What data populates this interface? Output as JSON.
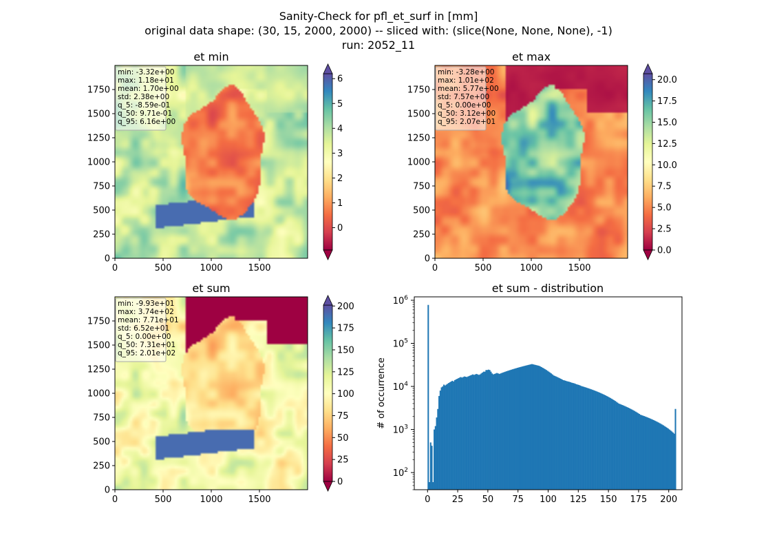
{
  "figure": {
    "title_lines": [
      "Sanity-Check for pfl_et_surf in [mm]",
      "original data shape: (30, 15, 2000, 2000) -- sliced with: (slice(None, None, None), -1)",
      "run: 2052_11"
    ]
  },
  "palette": {
    "spectral": [
      "#9e0142",
      "#d53e4f",
      "#f46d43",
      "#fdae61",
      "#fee08b",
      "#ffffbf",
      "#e6f598",
      "#abdda4",
      "#66c2a5",
      "#3288bd",
      "#5e4fa2"
    ],
    "hist_bar": "#1f77b4"
  },
  "maps": [
    {
      "id": "et-min",
      "title": "et min",
      "vmin": -0.9,
      "vmax": 6.2,
      "colorbar_ticks": [
        0,
        1,
        2,
        3,
        4,
        5,
        6
      ],
      "colorbar_tick_labels": [
        "0",
        "1",
        "2",
        "3",
        "4",
        "5",
        "6"
      ],
      "x_ticks": [
        0,
        500,
        1000,
        1500
      ],
      "y_ticks": [
        0,
        250,
        500,
        750,
        1000,
        1250,
        1500,
        1750
      ],
      "extent": [
        0,
        2000
      ],
      "stats": [
        "min: -3.32e+00",
        "max: 1.18e+01",
        "mean: 1.70e+00",
        "std: 2.38e+00",
        "q_5: -8.59e-01",
        "q_50: 9.71e-01",
        "q_95: 6.16e+00"
      ]
    },
    {
      "id": "et-max",
      "title": "et max",
      "vmin": 0,
      "vmax": 20.7,
      "colorbar_ticks": [
        0,
        2.5,
        5,
        7.5,
        10,
        12.5,
        15,
        17.5,
        20
      ],
      "colorbar_tick_labels": [
        "0.0",
        "2.5",
        "5.0",
        "7.5",
        "10.0",
        "12.5",
        "15.0",
        "17.5",
        "20.0"
      ],
      "x_ticks": [
        0,
        500,
        1000,
        1500
      ],
      "y_ticks": [
        0,
        250,
        500,
        750,
        1000,
        1250,
        1500,
        1750
      ],
      "extent": [
        0,
        2000
      ],
      "stats": [
        "min: -3.28e+00",
        "max: 1.01e+02",
        "mean: 5.77e+00",
        "std: 7.57e+00",
        "q_5: 0.00e+00",
        "q_50: 3.12e+00",
        "q_95: 2.07e+01"
      ]
    },
    {
      "id": "et-sum",
      "title": "et sum",
      "vmin": 0,
      "vmax": 201,
      "colorbar_ticks": [
        0,
        25,
        50,
        75,
        100,
        125,
        150,
        175,
        200
      ],
      "colorbar_tick_labels": [
        "0",
        "25",
        "50",
        "75",
        "100",
        "125",
        "150",
        "175",
        "200"
      ],
      "x_ticks": [
        0,
        500,
        1000,
        1500
      ],
      "y_ticks": [
        0,
        250,
        500,
        750,
        1000,
        1250,
        1500,
        1750
      ],
      "extent": [
        0,
        2000
      ],
      "stats": [
        "min: -9.93e+01",
        "max: 3.74e+02",
        "mean: 7.71e+01",
        "std: 6.52e+01",
        "q_5: 0.00e+00",
        "q_50: 7.31e+01",
        "q_95: 2.01e+02"
      ]
    }
  ],
  "chart_data": {
    "type": "bar",
    "title": "et sum - distribution",
    "ylabel": "# of occurrence",
    "xlabel": "",
    "yscale": "log",
    "xlim": [
      -11,
      211
    ],
    "ylim": [
      40,
      1200000
    ],
    "x_ticks": [
      0,
      25,
      50,
      75,
      100,
      125,
      150,
      175,
      200
    ],
    "y_tick_labels": [
      {
        "value": 100,
        "base": "10",
        "exp": "2"
      },
      {
        "value": 1000,
        "base": "10",
        "exp": "3"
      },
      {
        "value": 10000,
        "base": "10",
        "exp": "4"
      },
      {
        "value": 100000,
        "base": "10",
        "exp": "5"
      },
      {
        "value": 1000000,
        "base": "10",
        "exp": "6"
      }
    ],
    "bins": {
      "start": 0,
      "end": 200,
      "count": 200
    },
    "values": [
      780000,
      60,
      500,
      420,
      60,
      1000,
      1200,
      1900,
      3000,
      6000,
      8000,
      9500,
      10000,
      11000,
      10500,
      11000,
      11500,
      12000,
      12500,
      13000,
      13500,
      13000,
      14000,
      14500,
      15000,
      15500,
      16000,
      16500,
      16000,
      16500,
      17000,
      16800,
      16500,
      17000,
      17500,
      18000,
      18500,
      19000,
      18500,
      19000,
      19500,
      19000,
      18500,
      19000,
      20000,
      21000,
      22000,
      22000,
      24000,
      24000,
      24500,
      24000,
      22000,
      20000,
      19000,
      19500,
      20000,
      20500,
      20000,
      19500,
      20000,
      20500,
      21000,
      21500,
      22000,
      22500,
      23000,
      23500,
      24000,
      24500,
      25000,
      25500,
      26000,
      26500,
      27000,
      27500,
      28000,
      28500,
      29000,
      29500,
      30000,
      30500,
      31000,
      31500,
      32000,
      32500,
      33000,
      32500,
      32000,
      31500,
      31000,
      30500,
      30000,
      29000,
      28000,
      27000,
      26000,
      25000,
      24000,
      23000,
      22000,
      21000,
      20000,
      19000,
      18000,
      17500,
      17000,
      16500,
      16000,
      15500,
      15000,
      14500,
      14000,
      13800,
      13500,
      13200,
      13000,
      12800,
      12500,
      12200,
      12000,
      11800,
      11500,
      11200,
      11000,
      10800,
      10500,
      10200,
      10000,
      9800,
      9600,
      9400,
      9200,
      9000,
      8800,
      8600,
      8400,
      8200,
      8000,
      7800,
      7600,
      7400,
      7200,
      7000,
      6800,
      6600,
      6400,
      6200,
      6000,
      5800,
      5600,
      5400,
      5200,
      5000,
      4800,
      4600,
      4400,
      4200,
      4000,
      3900,
      3800,
      3700,
      3600,
      3500,
      3400,
      3300,
      3200,
      3100,
      3000,
      2900,
      2800,
      2700,
      2600,
      2500,
      2400,
      2300,
      2200,
      2150,
      2100,
      2050,
      2000,
      1950,
      1900,
      1850,
      1800,
      1750,
      1700,
      1650,
      1600,
      1550,
      1500,
      1450,
      1400,
      1350,
      1300,
      1250,
      1200,
      1150,
      1100,
      1050,
      1000,
      950,
      900,
      850,
      800,
      3000
    ]
  }
}
